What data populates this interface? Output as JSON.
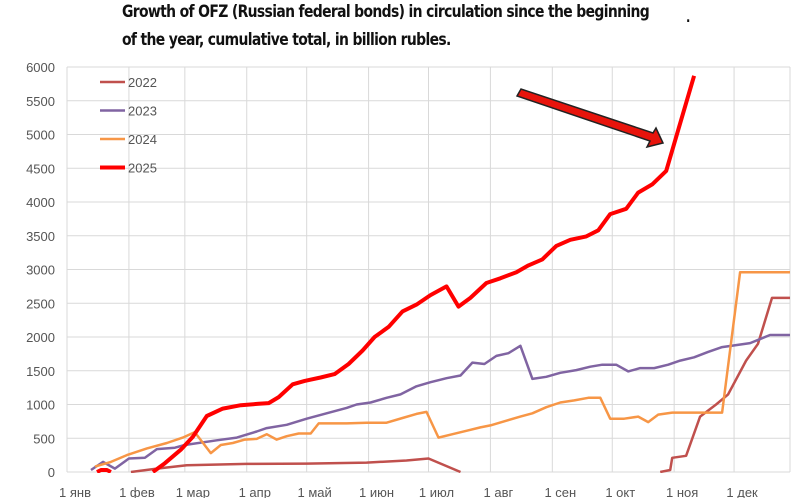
{
  "chart_data": {
    "type": "line",
    "title": "Growth of OFZ (Russian federal bonds) in circulation since the beginning",
    "title_line2": "of the year, cumulative total, in billion rubles.",
    "title_mark": ".",
    "xlabel": "",
    "ylabel": "",
    "x_unit": "day of year",
    "xlim": [
      0,
      362
    ],
    "ylim": [
      0,
      6000
    ],
    "yticks": [
      0,
      500,
      1000,
      1500,
      2000,
      2500,
      3000,
      3500,
      4000,
      4500,
      5000,
      5500,
      6000
    ],
    "xticks": [
      {
        "day": 0,
        "label": "1 янв"
      },
      {
        "day": 31,
        "label": "1 фев"
      },
      {
        "day": 59,
        "label": "1 мар"
      },
      {
        "day": 90,
        "label": "1 апр"
      },
      {
        "day": 120,
        "label": "1 май"
      },
      {
        "day": 151,
        "label": "1 июн"
      },
      {
        "day": 181,
        "label": "1 июл"
      },
      {
        "day": 212,
        "label": "1 авг"
      },
      {
        "day": 243,
        "label": "1 сен"
      },
      {
        "day": 273,
        "label": "1 окт"
      },
      {
        "day": 304,
        "label": "1 ноя"
      },
      {
        "day": 334,
        "label": "1 дек"
      }
    ],
    "grid": true,
    "legend": "top-left",
    "series": [
      {
        "name": "2022",
        "color": "#c0504d",
        "width": 2.5,
        "points": [
          [
            32,
            0
          ],
          [
            45,
            50
          ],
          [
            60,
            100
          ],
          [
            90,
            120
          ],
          [
            120,
            125
          ],
          [
            150,
            140
          ],
          [
            170,
            170
          ],
          [
            181,
            200
          ],
          [
            197,
            0
          ],
          null,
          [
            297,
            0
          ],
          [
            302,
            30
          ],
          [
            303,
            210
          ],
          [
            310,
            240
          ],
          [
            317,
            820
          ],
          [
            325,
            1000
          ],
          [
            331,
            1150
          ],
          [
            340,
            1650
          ],
          [
            346,
            1900
          ],
          [
            353,
            2580
          ],
          [
            362,
            2580
          ]
        ]
      },
      {
        "name": "2023",
        "color": "#8064a2",
        "width": 2.5,
        "points": [
          [
            12,
            30
          ],
          [
            18,
            150
          ],
          [
            24,
            50
          ],
          [
            31,
            200
          ],
          [
            39,
            210
          ],
          [
            45,
            340
          ],
          [
            54,
            360
          ],
          [
            59,
            400
          ],
          [
            75,
            470
          ],
          [
            85,
            510
          ],
          [
            95,
            600
          ],
          [
            100,
            650
          ],
          [
            110,
            700
          ],
          [
            120,
            790
          ],
          [
            130,
            870
          ],
          [
            140,
            950
          ],
          [
            145,
            1000
          ],
          [
            152,
            1030
          ],
          [
            160,
            1100
          ],
          [
            167,
            1150
          ],
          [
            175,
            1270
          ],
          [
            182,
            1330
          ],
          [
            190,
            1390
          ],
          [
            197,
            1430
          ],
          [
            203,
            1620
          ],
          [
            209,
            1600
          ],
          [
            215,
            1720
          ],
          [
            221,
            1760
          ],
          [
            227,
            1870
          ],
          [
            233,
            1380
          ],
          [
            240,
            1410
          ],
          [
            247,
            1470
          ],
          [
            255,
            1510
          ],
          [
            262,
            1560
          ],
          [
            268,
            1590
          ],
          [
            275,
            1590
          ],
          [
            281,
            1490
          ],
          [
            287,
            1540
          ],
          [
            294,
            1540
          ],
          [
            301,
            1590
          ],
          [
            307,
            1650
          ],
          [
            314,
            1700
          ],
          [
            321,
            1780
          ],
          [
            328,
            1850
          ],
          [
            335,
            1880
          ],
          [
            342,
            1910
          ],
          [
            352,
            2030
          ],
          [
            362,
            2030
          ]
        ]
      },
      {
        "name": "2024",
        "color": "#f79646",
        "width": 2.5,
        "points": [
          [
            14,
            80
          ],
          [
            22,
            150
          ],
          [
            30,
            250
          ],
          [
            40,
            350
          ],
          [
            50,
            430
          ],
          [
            58,
            510
          ],
          [
            64,
            590
          ],
          [
            72,
            280
          ],
          [
            77,
            400
          ],
          [
            83,
            430
          ],
          [
            89,
            480
          ],
          [
            95,
            490
          ],
          [
            100,
            560
          ],
          [
            105,
            480
          ],
          [
            110,
            530
          ],
          [
            116,
            570
          ],
          [
            122,
            570
          ],
          [
            126,
            720
          ],
          [
            140,
            720
          ],
          [
            150,
            730
          ],
          [
            160,
            730
          ],
          [
            168,
            800
          ],
          [
            175,
            860
          ],
          [
            180,
            890
          ],
          [
            186,
            510
          ],
          [
            193,
            560
          ],
          [
            200,
            610
          ],
          [
            207,
            660
          ],
          [
            212,
            690
          ],
          [
            220,
            760
          ],
          [
            227,
            820
          ],
          [
            233,
            870
          ],
          [
            240,
            960
          ],
          [
            247,
            1030
          ],
          [
            254,
            1060
          ],
          [
            261,
            1100
          ],
          [
            267,
            1100
          ],
          [
            272,
            790
          ],
          [
            279,
            790
          ],
          [
            286,
            820
          ],
          [
            291,
            740
          ],
          [
            296,
            850
          ],
          [
            303,
            880
          ],
          [
            328,
            880
          ],
          [
            337,
            2960
          ],
          [
            362,
            2960
          ]
        ]
      },
      {
        "name": "2025",
        "color": "#ff0000",
        "width": 4,
        "points": [
          [
            15,
            0
          ],
          [
            17,
            30
          ],
          [
            20,
            30
          ],
          [
            22,
            0
          ],
          null,
          [
            43,
            0
          ],
          [
            49,
            130
          ],
          [
            57,
            330
          ],
          [
            63,
            520
          ],
          [
            70,
            830
          ],
          [
            78,
            940
          ],
          [
            87,
            990
          ],
          [
            96,
            1010
          ],
          [
            101,
            1020
          ],
          [
            106,
            1110
          ],
          [
            113,
            1300
          ],
          [
            119,
            1350
          ],
          [
            127,
            1400
          ],
          [
            134,
            1450
          ],
          [
            141,
            1600
          ],
          [
            148,
            1800
          ],
          [
            154,
            2000
          ],
          [
            161,
            2150
          ],
          [
            168,
            2380
          ],
          [
            175,
            2480
          ],
          [
            182,
            2620
          ],
          [
            190,
            2750
          ],
          [
            196,
            2450
          ],
          [
            202,
            2580
          ],
          [
            210,
            2800
          ],
          [
            217,
            2870
          ],
          [
            225,
            2960
          ],
          [
            231,
            3060
          ],
          [
            238,
            3150
          ],
          [
            245,
            3350
          ],
          [
            252,
            3440
          ],
          [
            260,
            3490
          ],
          [
            266,
            3580
          ],
          [
            272,
            3820
          ],
          [
            280,
            3900
          ],
          [
            286,
            4140
          ],
          [
            293,
            4260
          ],
          [
            300,
            4460
          ],
          [
            314,
            5870
          ]
        ]
      }
    ]
  }
}
